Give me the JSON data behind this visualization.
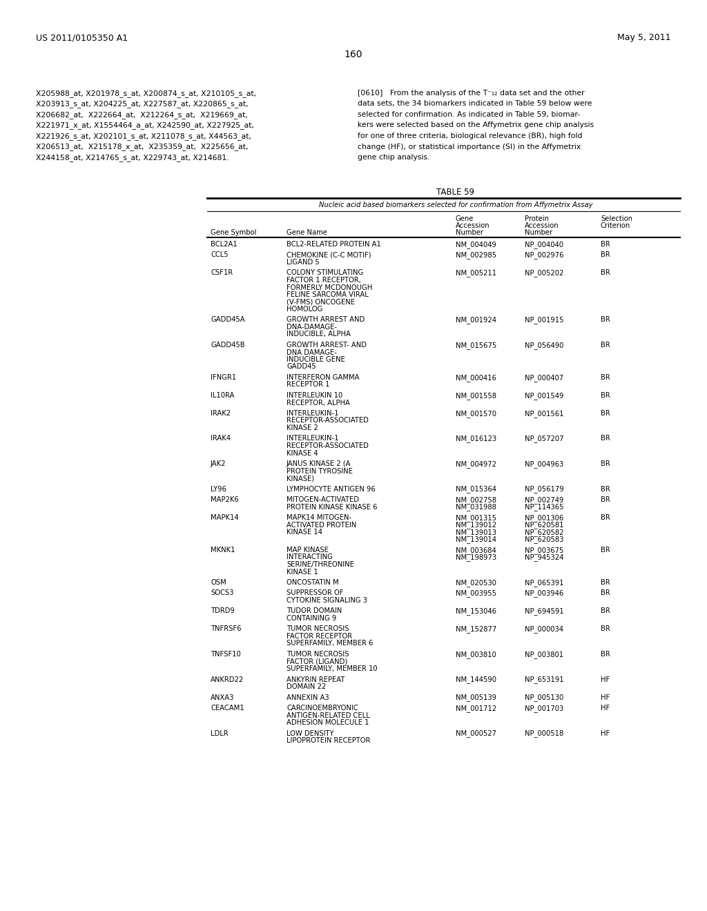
{
  "background_color": "#ffffff",
  "header_left": "US 2011/0105350 A1",
  "header_right": "May 5, 2011",
  "page_number": "160",
  "left_text_lines": [
    "X205988_at, X201978_s_at, X200874_s_at, X210105_s_at,",
    "X203913_s_at, X204225_at, X227587_at, X220865_s_at,",
    "X206682_at,  X222664_at,  X212264_s_at,  X219669_at,",
    "X221971_x_at, X1554464_a_at, X242590_at, X227925_at,",
    "X221926_s_at, X202101_s_at, X211078_s_at, X44563_at,",
    "X206513_at,  X215178_x_at,  X235359_at,  X225656_at,",
    "X244158_at, X214765_s_at, X229743_at, X214681."
  ],
  "right_text_lines": [
    "[0610]   From the analysis of the T⁻₁₂ data set and the other",
    "data sets, the 34 biomarkers indicated in Table 59 below were",
    "selected for confirmation. As indicated in Table 59, biomar-",
    "kers were selected based on the Affymetrix gene chip analysis",
    "for one of three criteria, biological relevance (BR), high fold",
    "change (HF), or statistical importance (SI) in the Affymetrix",
    "gene chip analysis."
  ],
  "table_title": "TABLE 59",
  "table_subtitle": "Nucleic acid based biomarkers selected for confirmation from Affymetrix Assay",
  "table_rows": [
    [
      "BCL2A1",
      "BCL2-RELATED PROTEIN A1",
      "NM_004049",
      "NP_004040",
      "BR"
    ],
    [
      "CCL5",
      "CHEMOKINE (C-C MOTIF)\nLIGAND 5",
      "NM_002985",
      "NP_002976",
      "BR"
    ],
    [
      "CSF1R",
      "COLONY STIMULATING\nFACTOR 1 RECEPTOR,\nFORMERLY MCDONOUGH\nFELINE SARCOMA VIRAL\n(V-FMS) ONCOGENE\nHOMOLOG",
      "NM_005211",
      "NP_005202",
      "BR"
    ],
    [
      "GADD45A",
      "GROWTH ARREST AND\nDNA-DAMAGE-\nINDUCIBLE, ALPHA",
      "NM_001924",
      "NP_001915",
      "BR"
    ],
    [
      "GADD45B",
      "GROWTH ARREST- AND\nDNA DAMAGE-\nINDUCIBLE GENE\nGADD45",
      "NM_015675",
      "NP_056490",
      "BR"
    ],
    [
      "IFNGR1",
      "INTERFERON GAMMA\nRECEPTOR 1",
      "NM_000416",
      "NP_000407",
      "BR"
    ],
    [
      "IL10RA",
      "INTERLEUKIN 10\nRECEPTOR, ALPHA",
      "NM_001558",
      "NP_001549",
      "BR"
    ],
    [
      "IRAK2",
      "INTERLEUKIN-1\nRECEPTOR-ASSOCIATED\nKINASE 2",
      "NM_001570",
      "NP_001561",
      "BR"
    ],
    [
      "IRAK4",
      "INTERLEUKIN-1\nRECEPTOR-ASSOCIATED\nKINASE 4",
      "NM_016123",
      "NP_057207",
      "BR"
    ],
    [
      "JAK2",
      "JANUS KINASE 2 (A\nPROTEIN TYROSINE\nKINASE)",
      "NM_004972",
      "NP_004963",
      "BR"
    ],
    [
      "LY96",
      "LYMPHOCYTE ANTIGEN 96",
      "NM_015364",
      "NP_056179",
      "BR"
    ],
    [
      "MAP2K6",
      "MITOGEN-ACTIVATED\nPROTEIN KINASE KINASE 6",
      "NM_002758\nNM_031988",
      "NP_002749\nNP_114365",
      "BR"
    ],
    [
      "MAPK14",
      "MAPK14 MITOGEN-\nACTIVATED PROTEIN\nKINASE 14",
      "NM_001315\nNM_139012\nNM_139013\nNM_139014",
      "NP_001306\nNP_620581\nNP_620582\nNP_620583",
      "BR"
    ],
    [
      "MKNK1",
      "MAP KINASE\nINTERACTING\nSERINE/THREONINE\nKINASE 1",
      "NM_003684\nNM_198973",
      "NP_003675\nNP_945324",
      "BR"
    ],
    [
      "OSM",
      "ONCOSTATIN M",
      "NM_020530",
      "NP_065391",
      "BR"
    ],
    [
      "SOCS3",
      "SUPPRESSOR OF\nCYTOKINE SIGNALING 3",
      "NM_003955",
      "NP_003946",
      "BR"
    ],
    [
      "TDRD9",
      "TUDOR DOMAIN\nCONTAINING 9",
      "NM_153046",
      "NP_694591",
      "BR"
    ],
    [
      "TNFRSF6",
      "TUMOR NECROSIS\nFACTOR RECEPTOR\nSUPERFAMILY, MEMBER 6",
      "NM_152877",
      "NP_000034",
      "BR"
    ],
    [
      "TNFSF10",
      "TUMOR NECROSIS\nFACTOR (LIGAND)\nSUPERFAMILY, MEMBER 10",
      "NM_003810",
      "NP_003801",
      "BR"
    ],
    [
      "ANKRD22",
      "ANKYRIN REPEAT\nDOMAIN 22",
      "NM_144590",
      "NP_653191",
      "HF"
    ],
    [
      "ANXA3",
      "ANNEXIN A3",
      "NM_005139",
      "NP_005130",
      "HF"
    ],
    [
      "CEACAM1",
      "CARCINOEMBRYONIC\nANTIGEN-RELATED CELL\nADHESION MOLECULE 1",
      "NM_001712",
      "NP_001703",
      "HF"
    ],
    [
      "LDLR",
      "LOW DENSITY\nLIPOPROTEIN RECEPTOR",
      "NM_000527",
      "NP_000518",
      "HF"
    ]
  ]
}
